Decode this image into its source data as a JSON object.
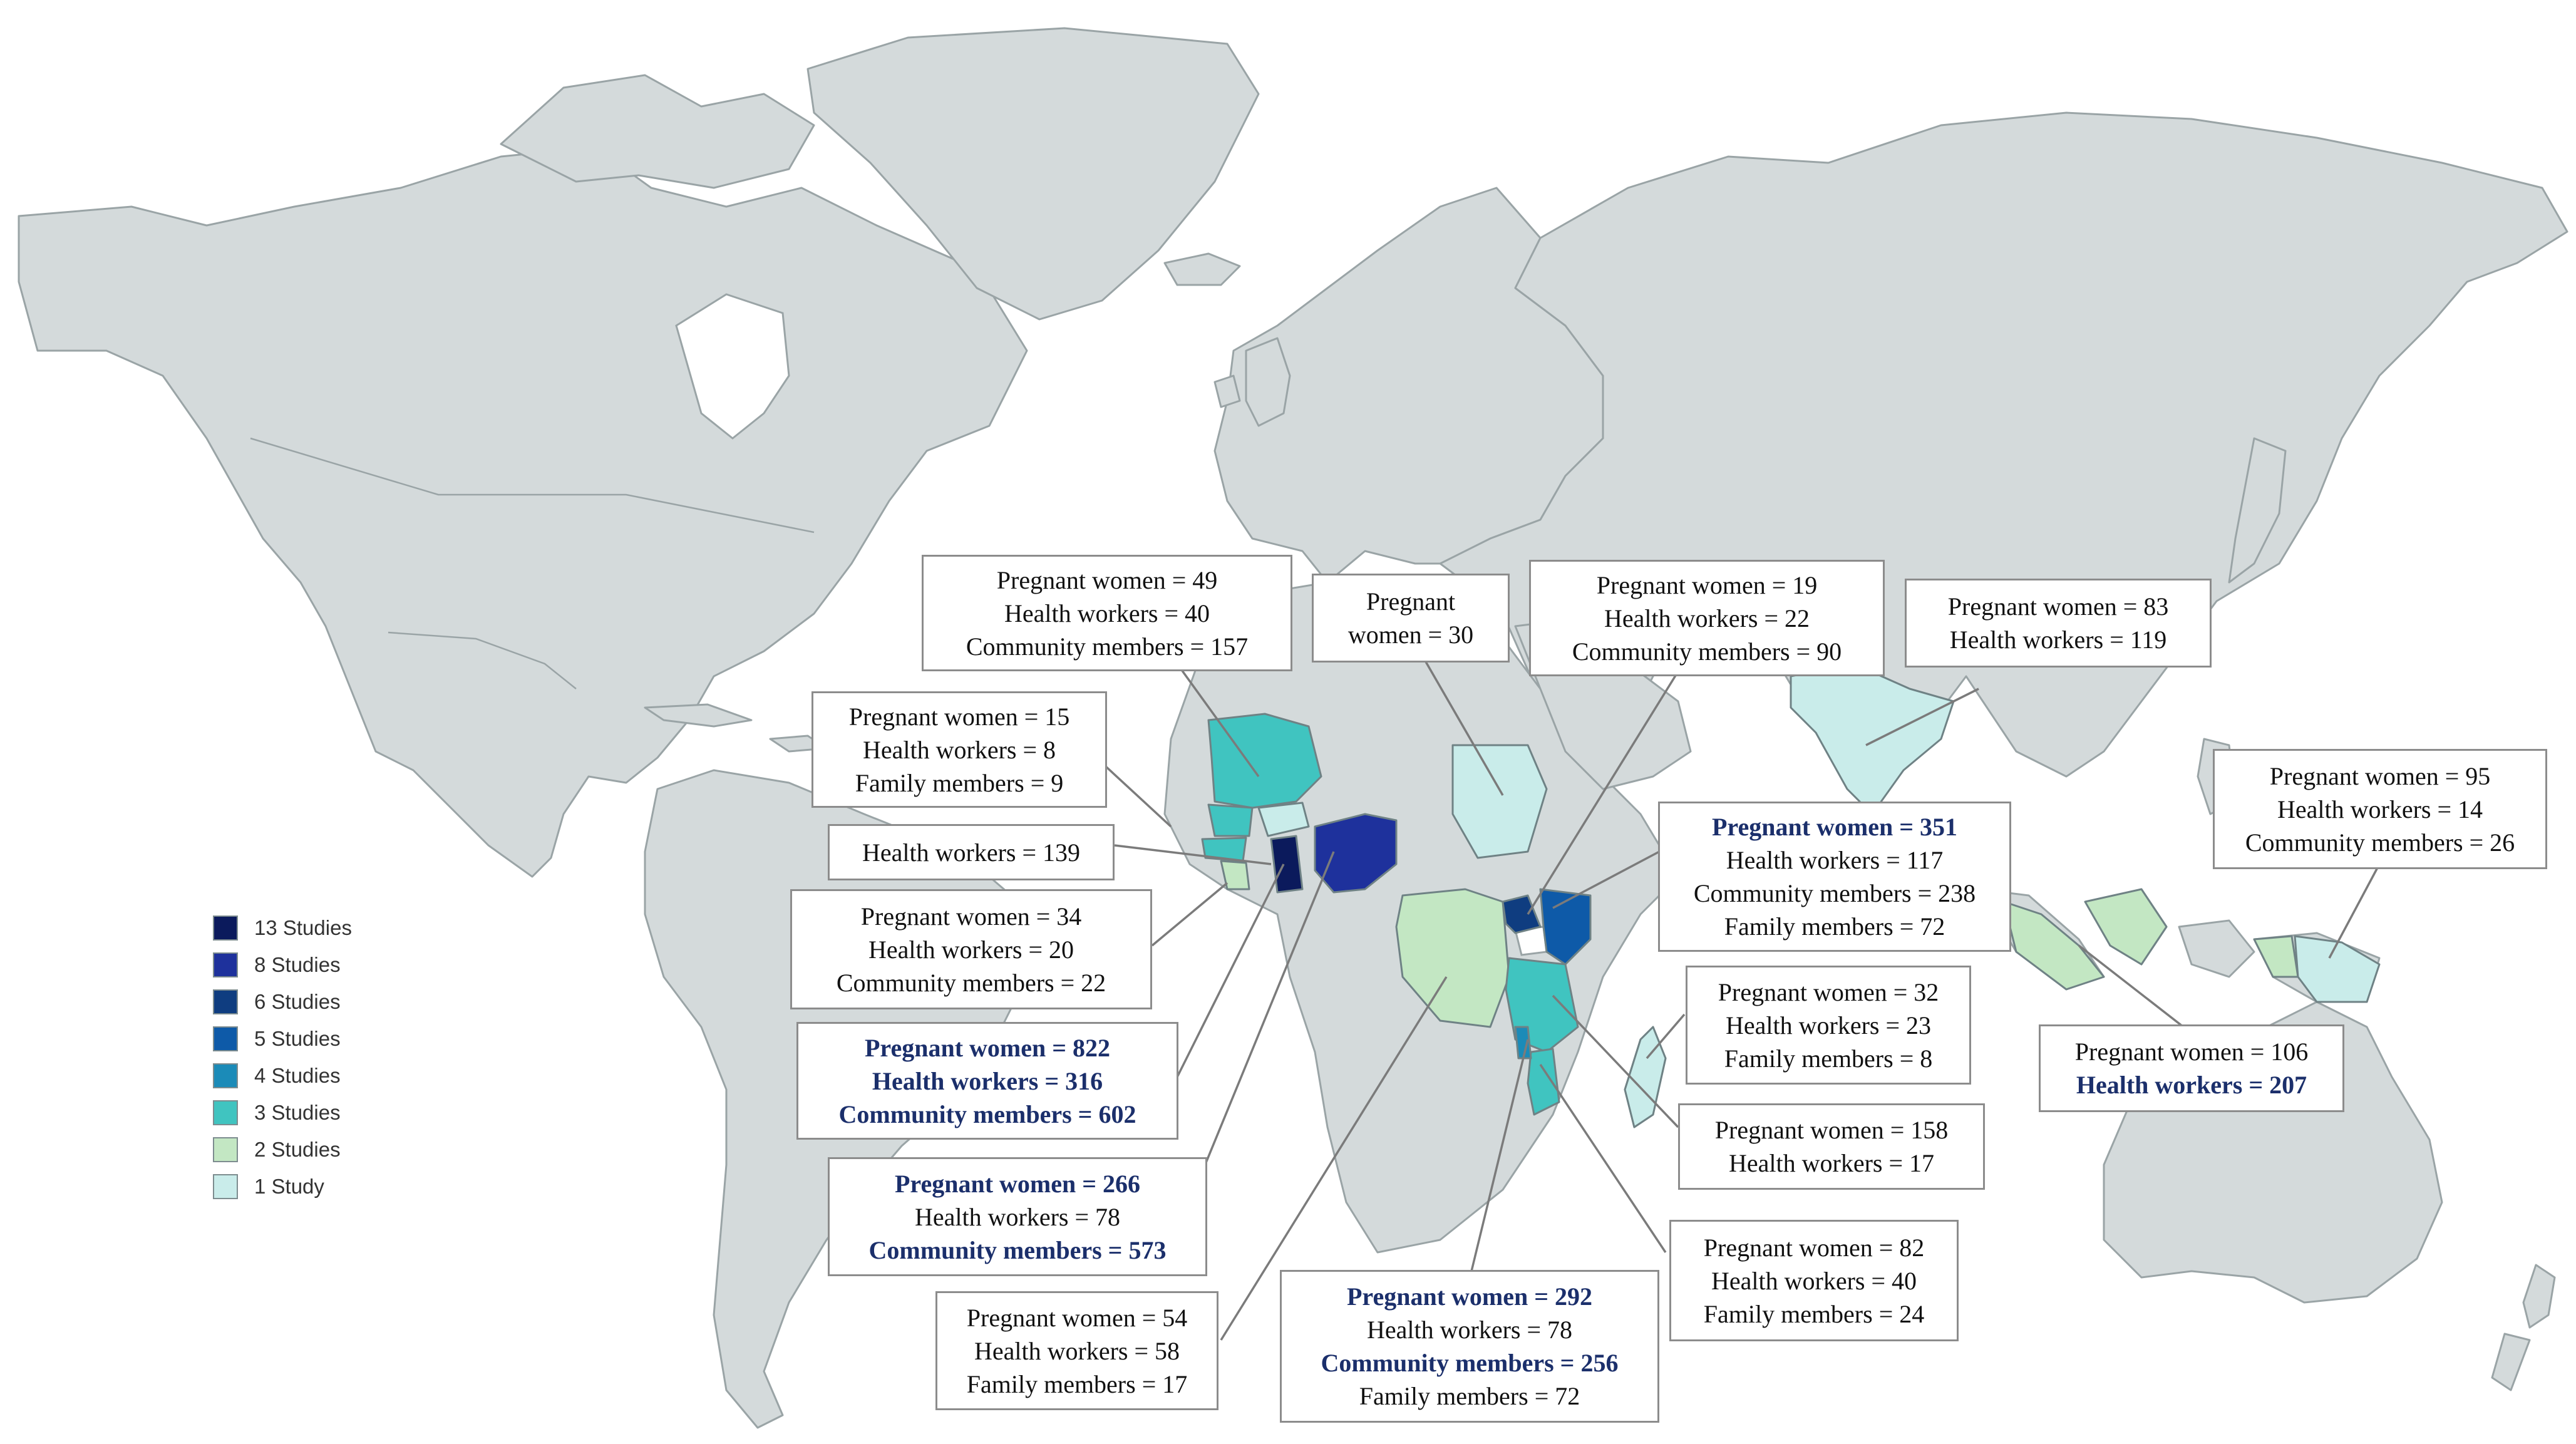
{
  "colors": {
    "land": "#d4dadb",
    "study_13": "#0b1a5c",
    "study_8": "#1e319c",
    "study_6": "#0f3d80",
    "study_5": "#0e5aa8",
    "study_4": "#1b8bb8",
    "study_3": "#40c4c0",
    "study_2": "#c3e7c3",
    "study_1": "#c9ecea",
    "highlight_text": "#1b2f6b"
  },
  "legend": {
    "items": [
      {
        "label": "13 Studies",
        "color": "#0b1a5c"
      },
      {
        "label": "8 Studies",
        "color": "#1e319c"
      },
      {
        "label": "6 Studies",
        "color": "#0f3d80"
      },
      {
        "label": "5 Studies",
        "color": "#0e5aa8"
      },
      {
        "label": "4 Studies",
        "color": "#1b8bb8"
      },
      {
        "label": "3 Studies",
        "color": "#40c4c0"
      },
      {
        "label": "2 Studies",
        "color": "#c3e7c3"
      },
      {
        "label": "1 Study",
        "color": "#c9ecea"
      }
    ]
  },
  "callouts": [
    {
      "lines": [
        {
          "text": "Pregnant women = 49",
          "bold": false
        },
        {
          "text": "Health workers = 40",
          "bold": false
        },
        {
          "text": "Community members = 157",
          "bold": false
        }
      ]
    },
    {
      "lines": [
        {
          "text": "Pregnant",
          "bold": false
        },
        {
          "text": "women = 30",
          "bold": false
        }
      ]
    },
    {
      "lines": [
        {
          "text": "Pregnant women = 19",
          "bold": false
        },
        {
          "text": "Health workers = 22",
          "bold": false
        },
        {
          "text": "Community members = 90",
          "bold": false
        }
      ]
    },
    {
      "lines": [
        {
          "text": "Pregnant women = 83",
          "bold": false
        },
        {
          "text": "Health workers = 119",
          "bold": false
        }
      ]
    },
    {
      "lines": [
        {
          "text": "Pregnant women = 15",
          "bold": false
        },
        {
          "text": "Health workers = 8",
          "bold": false
        },
        {
          "text": "Family members = 9",
          "bold": false
        }
      ]
    },
    {
      "lines": [
        {
          "text": "Health workers = 139",
          "bold": false
        }
      ]
    },
    {
      "lines": [
        {
          "text": "Pregnant women = 34",
          "bold": false
        },
        {
          "text": "Health workers = 20",
          "bold": false
        },
        {
          "text": "Community members = 22",
          "bold": false
        }
      ]
    },
    {
      "lines": [
        {
          "text": "Pregnant women = 822",
          "bold": true
        },
        {
          "text": "Health workers = 316",
          "bold": true
        },
        {
          "text": "Community members = 602",
          "bold": true
        }
      ]
    },
    {
      "lines": [
        {
          "text": "Pregnant women = 266",
          "bold": true
        },
        {
          "text": "Health workers = 78",
          "bold": false
        },
        {
          "text": "Community members = 573",
          "bold": true
        }
      ]
    },
    {
      "lines": [
        {
          "text": "Pregnant women = 54",
          "bold": false
        },
        {
          "text": "Health workers = 58",
          "bold": false
        },
        {
          "text": "Family members = 17",
          "bold": false
        }
      ]
    },
    {
      "lines": [
        {
          "text": "Pregnant women = 292",
          "bold": true
        },
        {
          "text": "Health workers = 78",
          "bold": false
        },
        {
          "text": "Community members = 256",
          "bold": true
        },
        {
          "text": "Family members = 72",
          "bold": false
        }
      ]
    },
    {
      "lines": [
        {
          "text": "Pregnant women = 82",
          "bold": false
        },
        {
          "text": "Health workers = 40",
          "bold": false
        },
        {
          "text": "Family members = 24",
          "bold": false
        }
      ]
    },
    {
      "lines": [
        {
          "text": "Pregnant women = 158",
          "bold": false
        },
        {
          "text": "Health workers = 17",
          "bold": false
        }
      ]
    },
    {
      "lines": [
        {
          "text": "Pregnant women = 32",
          "bold": false
        },
        {
          "text": "Health workers = 23",
          "bold": false
        },
        {
          "text": "Family members = 8",
          "bold": false
        }
      ]
    },
    {
      "lines": [
        {
          "text": "Pregnant women = 351",
          "bold": true
        },
        {
          "text": "Health workers = 117",
          "bold": false
        },
        {
          "text": "Community members = 238",
          "bold": false
        },
        {
          "text": "Family members = 72",
          "bold": false
        }
      ]
    },
    {
      "lines": [
        {
          "text": "Pregnant women = 106",
          "bold": false
        },
        {
          "text": "Health workers = 207",
          "bold": true
        }
      ]
    },
    {
      "lines": [
        {
          "text": "Pregnant women = 95",
          "bold": false
        },
        {
          "text": "Health workers = 14",
          "bold": false
        },
        {
          "text": "Community members = 26",
          "bold": false
        }
      ]
    }
  ]
}
